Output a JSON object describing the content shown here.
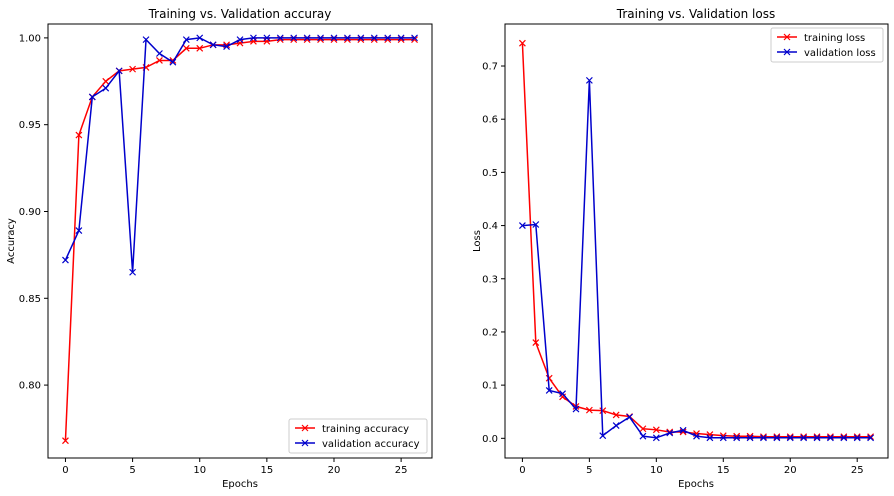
{
  "chart_data": [
    {
      "type": "line",
      "title": "Training vs. Validation accuray",
      "xlabel": "Epochs",
      "ylabel": "Accuracy",
      "xlim": [
        -1.3,
        27.3
      ],
      "ylim": [
        0.758,
        1.008
      ],
      "xticks": [
        0,
        5,
        10,
        15,
        20,
        25
      ],
      "yticks": [
        0.8,
        0.85,
        0.9,
        0.95,
        1.0
      ],
      "ytick_labels": [
        "0.80",
        "0.85",
        "0.90",
        "0.95",
        "1.00"
      ],
      "grid": false,
      "legend_position": "lower-right",
      "x": [
        0,
        1,
        2,
        3,
        4,
        5,
        6,
        7,
        8,
        9,
        10,
        11,
        12,
        13,
        14,
        15,
        16,
        17,
        18,
        19,
        20,
        21,
        22,
        23,
        24,
        25,
        26
      ],
      "series": [
        {
          "name": "training accuracy",
          "color": "#ff0000",
          "marker": "x",
          "values": [
            0.768,
            0.944,
            0.966,
            0.975,
            0.981,
            0.982,
            0.983,
            0.987,
            0.987,
            0.994,
            0.994,
            0.996,
            0.996,
            0.997,
            0.998,
            0.998,
            0.999,
            0.999,
            0.999,
            0.999,
            0.999,
            0.999,
            0.999,
            0.999,
            0.999,
            0.999,
            0.999
          ]
        },
        {
          "name": "validation accuracy",
          "color": "#0000cc",
          "marker": "x",
          "values": [
            0.872,
            0.889,
            0.966,
            0.971,
            0.981,
            0.865,
            0.999,
            0.991,
            0.986,
            0.999,
            1.0,
            0.996,
            0.995,
            0.999,
            1.0,
            1.0,
            1.0,
            1.0,
            1.0,
            1.0,
            1.0,
            1.0,
            1.0,
            1.0,
            1.0,
            1.0,
            1.0
          ]
        }
      ]
    },
    {
      "type": "line",
      "title": "Training vs. Validation loss",
      "xlabel": "Epochs",
      "ylabel": "Loss",
      "xlim": [
        -1.3,
        27.3
      ],
      "ylim": [
        -0.037,
        0.779
      ],
      "xticks": [
        0,
        5,
        10,
        15,
        20,
        25
      ],
      "yticks": [
        0.0,
        0.1,
        0.2,
        0.3,
        0.4,
        0.5,
        0.6,
        0.7
      ],
      "ytick_labels": [
        "0.0",
        "0.1",
        "0.2",
        "0.3",
        "0.4",
        "0.5",
        "0.6",
        "0.7"
      ],
      "grid": false,
      "legend_position": "upper-right",
      "x": [
        0,
        1,
        2,
        3,
        4,
        5,
        6,
        7,
        8,
        9,
        10,
        11,
        12,
        13,
        14,
        15,
        16,
        17,
        18,
        19,
        20,
        21,
        22,
        23,
        24,
        25,
        26
      ],
      "series": [
        {
          "name": "training loss",
          "color": "#ff0000",
          "marker": "x",
          "values": [
            0.743,
            0.18,
            0.113,
            0.078,
            0.06,
            0.053,
            0.052,
            0.044,
            0.041,
            0.018,
            0.016,
            0.012,
            0.012,
            0.009,
            0.007,
            0.005,
            0.004,
            0.004,
            0.003,
            0.003,
            0.003,
            0.003,
            0.003,
            0.003,
            0.003,
            0.003,
            0.003
          ]
        },
        {
          "name": "validation loss",
          "color": "#0000cc",
          "marker": "x",
          "values": [
            0.4,
            0.402,
            0.09,
            0.084,
            0.055,
            0.673,
            0.005,
            0.024,
            0.04,
            0.004,
            0.001,
            0.01,
            0.015,
            0.004,
            0.001,
            0.001,
            0.001,
            0.001,
            0.001,
            0.001,
            0.001,
            0.001,
            0.001,
            0.001,
            0.001,
            0.001,
            0.001
          ]
        }
      ]
    }
  ]
}
